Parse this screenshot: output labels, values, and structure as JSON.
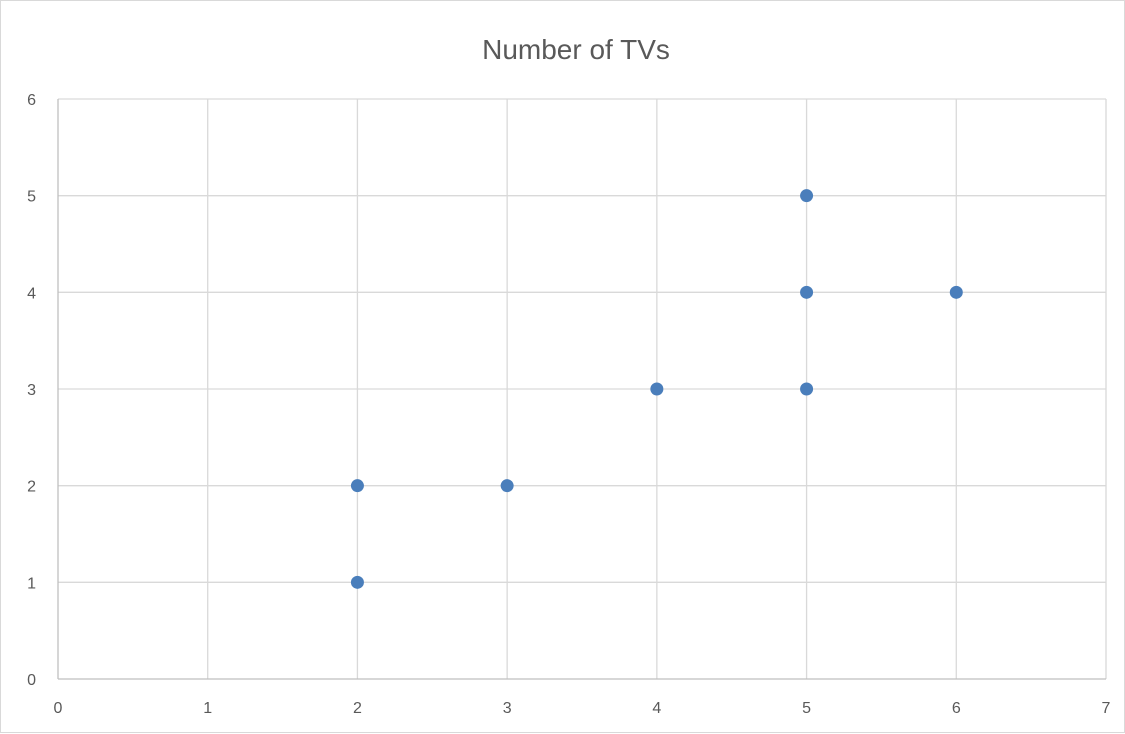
{
  "chart_data": {
    "type": "scatter",
    "title": "Number of TVs",
    "xlabel": "",
    "ylabel": "",
    "xlim": [
      0,
      7
    ],
    "ylim": [
      0,
      6
    ],
    "x_ticks": [
      0,
      1,
      2,
      3,
      4,
      5,
      6,
      7
    ],
    "y_ticks": [
      0,
      1,
      2,
      3,
      4,
      5,
      6
    ],
    "grid": true,
    "legend": "none",
    "marker_color": "#4a7ebb",
    "series": [
      {
        "points": [
          {
            "x": 2,
            "y": 1
          },
          {
            "x": 2,
            "y": 2
          },
          {
            "x": 3,
            "y": 2
          },
          {
            "x": 4,
            "y": 3
          },
          {
            "x": 5,
            "y": 3
          },
          {
            "x": 5,
            "y": 4
          },
          {
            "x": 5,
            "y": 5
          },
          {
            "x": 6,
            "y": 4
          }
        ]
      }
    ]
  }
}
